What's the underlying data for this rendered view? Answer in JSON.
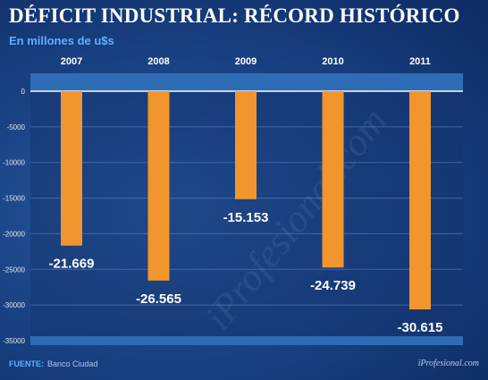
{
  "title": "DÉFICIT INDUSTRIAL: RÉCORD HISTÓRICO",
  "subtitle": "En millones de u$s",
  "source_label": "FUENTE:",
  "source_text": "Banco Ciudad",
  "brand": "iProfesional.com",
  "watermark": "iProfesional.com",
  "colors": {
    "bar": "#f0962d",
    "background": "#1a4486",
    "plot_band": "#2e6cb6",
    "gridline": "#5a86c4",
    "label_text": "#ffffff"
  },
  "chart_data": {
    "type": "bar",
    "categories": [
      "2007",
      "2008",
      "2009",
      "2010",
      "2011"
    ],
    "values": [
      -21669,
      -26565,
      -15153,
      -24739,
      -30615
    ],
    "value_labels": [
      "-21.669",
      "-26.565",
      "-15.153",
      "-24.739",
      "-30.615"
    ],
    "yticks": [
      "0",
      "-5000",
      "-10000",
      "-15000",
      "-20000",
      "-25000",
      "-30000",
      "-35000"
    ],
    "ylim": [
      -35000,
      0
    ],
    "grid": true,
    "xlabel": "",
    "ylabel": ""
  }
}
